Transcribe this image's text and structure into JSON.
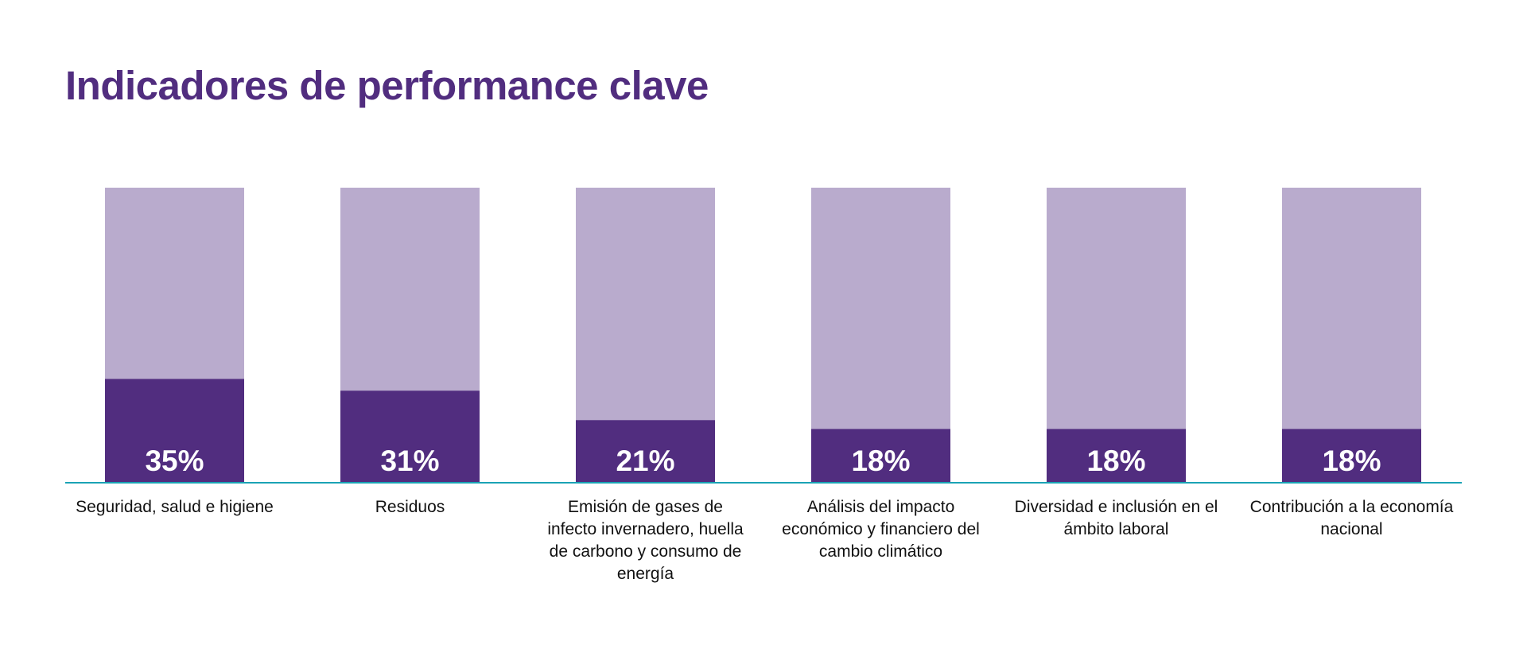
{
  "chart_data": {
    "type": "bar",
    "title": "Indicadores de performance clave",
    "categories": [
      "Seguridad, salud e higiene",
      "Residuos",
      "Emisión de gases de infecto invernadero, huella de carbono y consumo de energía",
      "Análisis del impacto económico y financiero del cambio climático",
      "Diversidad e inclusión en el ámbito laboral",
      "Contribución a la economía nacional"
    ],
    "values": [
      35,
      31,
      21,
      18,
      18,
      18
    ],
    "data_labels": [
      "35%",
      "31%",
      "21%",
      "18%",
      "18%",
      "18%"
    ],
    "ylim": [
      0,
      100
    ],
    "grid": false,
    "colors": {
      "fill": "#512d7f",
      "background": "#b9abcd",
      "axis": "#1aa3b5",
      "title": "#512d7f"
    }
  }
}
